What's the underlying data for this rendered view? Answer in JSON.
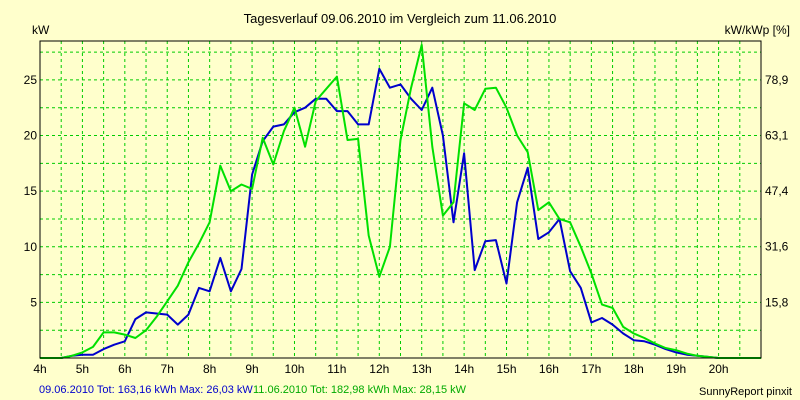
{
  "chart_data": {
    "type": "line",
    "title": "Tagesverlauf 09.06.2010 im Vergleich zum 11.06.2010",
    "ylabel_left": "kW",
    "ylabel_right": "kW/kWp [%]",
    "xlim": [
      4,
      21
    ],
    "ylim": [
      0,
      28.5
    ],
    "x_ticks": [
      4,
      5,
      6,
      7,
      8,
      9,
      10,
      11,
      12,
      13,
      14,
      15,
      16,
      17,
      18,
      19,
      20
    ],
    "x_tick_labels": [
      "4h",
      "5h",
      "6h",
      "7h",
      "8h",
      "9h",
      "10h",
      "11h",
      "12h",
      "13h",
      "14h",
      "15h",
      "16h",
      "17h",
      "18h",
      "19h",
      "20h"
    ],
    "y_ticks": [
      5,
      10,
      15,
      20,
      25
    ],
    "y_tick_labels": [
      "5",
      "10",
      "15",
      "20",
      "25"
    ],
    "y2_ticks": [
      15.8,
      31.6,
      47.4,
      63.1,
      78.9
    ],
    "y2_tick_labels": [
      "15,8",
      "31,6",
      "47,4",
      "63,1",
      "78,9"
    ],
    "y2_max": 90,
    "grid": true,
    "series": [
      {
        "name": "09.06.2010",
        "color": "#0000cc",
        "x": [
          4,
          4.5,
          4.75,
          5,
          5.25,
          5.5,
          5.75,
          6,
          6.25,
          6.5,
          6.75,
          7,
          7.25,
          7.5,
          7.75,
          8,
          8.25,
          8.5,
          8.75,
          9,
          9.25,
          9.5,
          9.75,
          10,
          10.25,
          10.5,
          10.75,
          11,
          11.25,
          11.5,
          11.75,
          12,
          12.25,
          12.5,
          12.75,
          13,
          13.25,
          13.5,
          13.75,
          14,
          14.25,
          14.5,
          14.75,
          15,
          15.25,
          15.5,
          15.75,
          16,
          16.25,
          16.5,
          16.75,
          17,
          17.25,
          17.5,
          17.75,
          18,
          18.25,
          18.5,
          18.75,
          19,
          19.25,
          19.5,
          20,
          20.25,
          21
        ],
        "y": [
          0,
          0,
          0.2,
          0.3,
          0.3,
          0.8,
          1.2,
          1.5,
          3.5,
          4.1,
          4.0,
          3.9,
          3.0,
          3.9,
          6.3,
          6.0,
          9.0,
          6.0,
          8.0,
          16.5,
          19.5,
          20.8,
          21.0,
          22.1,
          22.5,
          23.3,
          23.3,
          22.2,
          22.2,
          21.0,
          21.0,
          26.0,
          24.3,
          24.6,
          23.3,
          22.3,
          24.3,
          20.0,
          12.2,
          18.4,
          7.9,
          10.5,
          10.6,
          6.7,
          14.0,
          17.1,
          10.7,
          11.3,
          12.5,
          7.8,
          6.3,
          3.2,
          3.6,
          3.0,
          2.2,
          1.6,
          1.5,
          1.2,
          0.8,
          0.5,
          0.3,
          0.2,
          0,
          0,
          0
        ]
      },
      {
        "name": "11.06.2010",
        "color": "#00e000",
        "x": [
          4,
          4.5,
          4.75,
          5,
          5.25,
          5.5,
          5.75,
          6,
          6.25,
          6.5,
          6.75,
          7,
          7.25,
          7.5,
          7.75,
          8,
          8.25,
          8.5,
          8.75,
          9,
          9.25,
          9.5,
          9.75,
          10,
          10.25,
          10.5,
          10.75,
          11,
          11.25,
          11.5,
          11.75,
          12,
          12.25,
          12.5,
          12.75,
          13,
          13.25,
          13.5,
          13.75,
          14,
          14.25,
          14.5,
          14.75,
          15,
          15.25,
          15.5,
          15.75,
          16,
          16.25,
          16.5,
          16.75,
          17,
          17.25,
          17.5,
          17.75,
          18,
          18.25,
          18.5,
          18.75,
          19,
          19.25,
          19.5,
          20,
          20.25,
          21
        ],
        "y": [
          0,
          0,
          0.2,
          0.5,
          1.0,
          2.3,
          2.3,
          2.1,
          1.8,
          2.5,
          3.7,
          5.1,
          6.5,
          8.6,
          10.3,
          12.2,
          17.3,
          15.0,
          15.6,
          15.2,
          19.8,
          17.4,
          20.4,
          22.5,
          19.0,
          23.1,
          24.2,
          25.3,
          19.6,
          19.7,
          11.0,
          7.3,
          10.0,
          19.6,
          24.3,
          28.15,
          19.0,
          12.8,
          14.0,
          22.9,
          22.3,
          24.2,
          24.3,
          22.5,
          20.0,
          18.5,
          13.3,
          14.0,
          12.5,
          12.2,
          10.0,
          7.6,
          4.8,
          4.5,
          2.8,
          2.2,
          1.8,
          1.3,
          0.9,
          0.7,
          0.4,
          0.2,
          0,
          0,
          0
        ]
      }
    ],
    "footer": {
      "series1": "09.06.2010 Tot: 163,16 kWh Max: 26,03 kW",
      "series2": "11.06.2010 Tot: 182,98 kWh Max: 28,15 kW",
      "credit": "SunnyReport pinxit"
    }
  }
}
